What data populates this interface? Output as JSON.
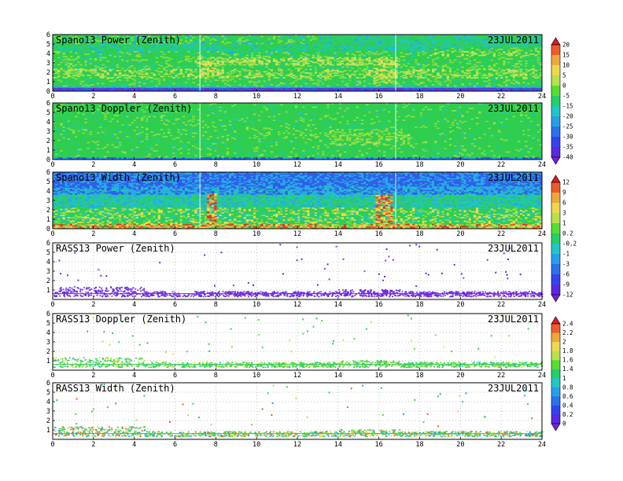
{
  "chart_data": [
    {
      "type": "heatmap",
      "title": "Spano13 Power (Zenith)",
      "date": "23JUL2011",
      "xlim": [
        0,
        24
      ],
      "ylim": [
        0,
        6
      ],
      "xticks": [
        0,
        2,
        4,
        6,
        8,
        10,
        12,
        14,
        16,
        18,
        20,
        22,
        24
      ],
      "yticks": [
        0,
        1,
        2,
        3,
        4,
        5,
        6
      ],
      "grid": true,
      "colorbar": {
        "levels": [
          -45,
          -40,
          -35,
          -30,
          -25,
          -20,
          -15,
          -5,
          0,
          5,
          10,
          15,
          20,
          25
        ],
        "tick_labels": [
          "20",
          "15",
          "10",
          "5",
          "0",
          "-5",
          "-15",
          "-20",
          "-25",
          "-30",
          "-35",
          "-40"
        ],
        "colors": [
          "#7a1fd6",
          "#5a28e6",
          "#3344ee",
          "#2a72ee",
          "#27a0ec",
          "#1ec8c6",
          "#22d066",
          "#55dd33",
          "#b6e24a",
          "#efd84a",
          "#f0a838",
          "#ee5a28",
          "#d81a28"
        ]
      }
    },
    {
      "type": "heatmap",
      "title": "Spano13 Doppler (Zenith)",
      "date": "23JUL2011",
      "xlim": [
        0,
        24
      ],
      "ylim": [
        0,
        6
      ],
      "xticks": [
        0,
        2,
        4,
        6,
        8,
        10,
        12,
        14,
        16,
        18,
        20,
        22,
        24
      ],
      "yticks": [
        0,
        1,
        2,
        3,
        4,
        5,
        6
      ],
      "grid": true
    },
    {
      "type": "heatmap",
      "title": "Spano13 Width (Zenith)",
      "date": "23JUL2011",
      "xlim": [
        0,
        24
      ],
      "ylim": [
        0,
        6
      ],
      "xticks": [
        0,
        2,
        4,
        6,
        8,
        10,
        12,
        14,
        16,
        18,
        20,
        22,
        24
      ],
      "yticks": [
        0,
        1,
        2,
        3,
        4,
        5,
        6
      ],
      "grid": true,
      "colorbar": {
        "levels": [
          -15,
          -12,
          -9,
          -6,
          -3,
          -1,
          -0.2,
          0.2,
          1,
          3,
          6,
          9,
          12,
          15
        ],
        "tick_labels": [
          "12",
          "9",
          "6",
          "3",
          "1",
          "0.2",
          "-0.2",
          "-1",
          "-3",
          "-6",
          "-9",
          "-12"
        ],
        "colors": [
          "#7a1fd6",
          "#5a28e6",
          "#3344ee",
          "#2a72ee",
          "#27a0ec",
          "#1ec8c6",
          "#22d066",
          "#55dd33",
          "#b6e24a",
          "#efd84a",
          "#f0a838",
          "#ee5a28",
          "#d81a28"
        ]
      }
    },
    {
      "type": "heatmap",
      "title": "RASS13 Power (Zenith)",
      "date": "23JUL2011",
      "xlim": [
        0,
        24
      ],
      "ylim": [
        0,
        6
      ],
      "xticks": [
        0,
        2,
        4,
        6,
        8,
        10,
        12,
        14,
        16,
        18,
        20,
        22,
        24
      ],
      "yticks": [
        1,
        2,
        3,
        4,
        5,
        6
      ],
      "grid": true
    },
    {
      "type": "heatmap",
      "title": "RASS13 Doppler (Zenith)",
      "date": "23JUL2011",
      "xlim": [
        0,
        24
      ],
      "ylim": [
        0,
        6
      ],
      "xticks": [
        0,
        2,
        4,
        6,
        8,
        10,
        12,
        14,
        16,
        18,
        20,
        22,
        24
      ],
      "yticks": [
        1,
        2,
        3,
        4,
        5,
        6
      ],
      "grid": true,
      "colorbar": {
        "levels": [
          -0.2,
          0,
          0.2,
          0.4,
          0.6,
          0.8,
          1,
          1.4,
          1.6,
          1.8,
          2,
          2.2,
          2.4,
          2.6
        ],
        "tick_labels": [
          "2.4",
          "2.2",
          "2",
          "1.8",
          "1.6",
          "1.4",
          "1",
          "0.8",
          "0.6",
          "0.4",
          "0.2",
          "0"
        ],
        "colors": [
          "#7a1fd6",
          "#5a28e6",
          "#3344ee",
          "#2a72ee",
          "#27a0ec",
          "#1ec8c6",
          "#22d066",
          "#55dd33",
          "#b6e24a",
          "#efd84a",
          "#f0a838",
          "#ee5a28",
          "#d81a28"
        ]
      }
    },
    {
      "type": "heatmap",
      "title": "RASS13 Width (Zenith)",
      "date": "23JUL2011",
      "xlim": [
        0,
        24
      ],
      "ylim": [
        0,
        6
      ],
      "xticks": [
        0,
        2,
        4,
        6,
        8,
        10,
        12,
        14,
        16,
        18,
        20,
        22,
        24
      ],
      "yticks": [
        1,
        2,
        3,
        4,
        5,
        6
      ],
      "grid": true
    }
  ]
}
